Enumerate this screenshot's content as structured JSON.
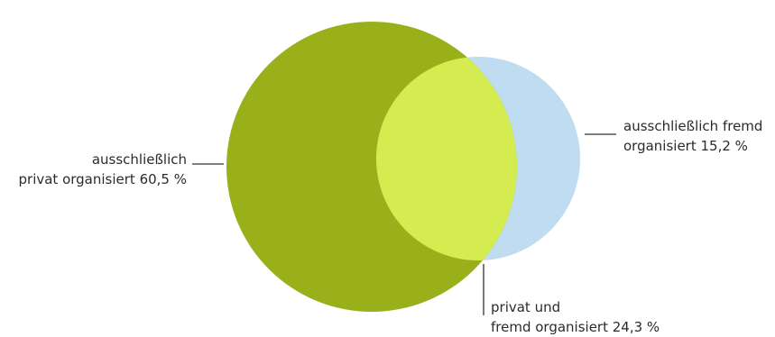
{
  "diagram": {
    "type": "venn",
    "sets": [
      {
        "id": "private",
        "line1": "ausschließlich",
        "line2": "privat organisiert 60,5 %",
        "value": 60.5,
        "color": "#9ab01a"
      },
      {
        "id": "external",
        "line1": "ausschließlich fremd",
        "line2": "organisiert 15,2 %",
        "value": 15.2,
        "color": "#bfdcf0"
      },
      {
        "id": "both",
        "line1": "privat und",
        "line2": "fremd organisiert 24,3 %",
        "value": 24.3,
        "color": "#d4ec50"
      }
    ],
    "leader_color": "#333333"
  }
}
